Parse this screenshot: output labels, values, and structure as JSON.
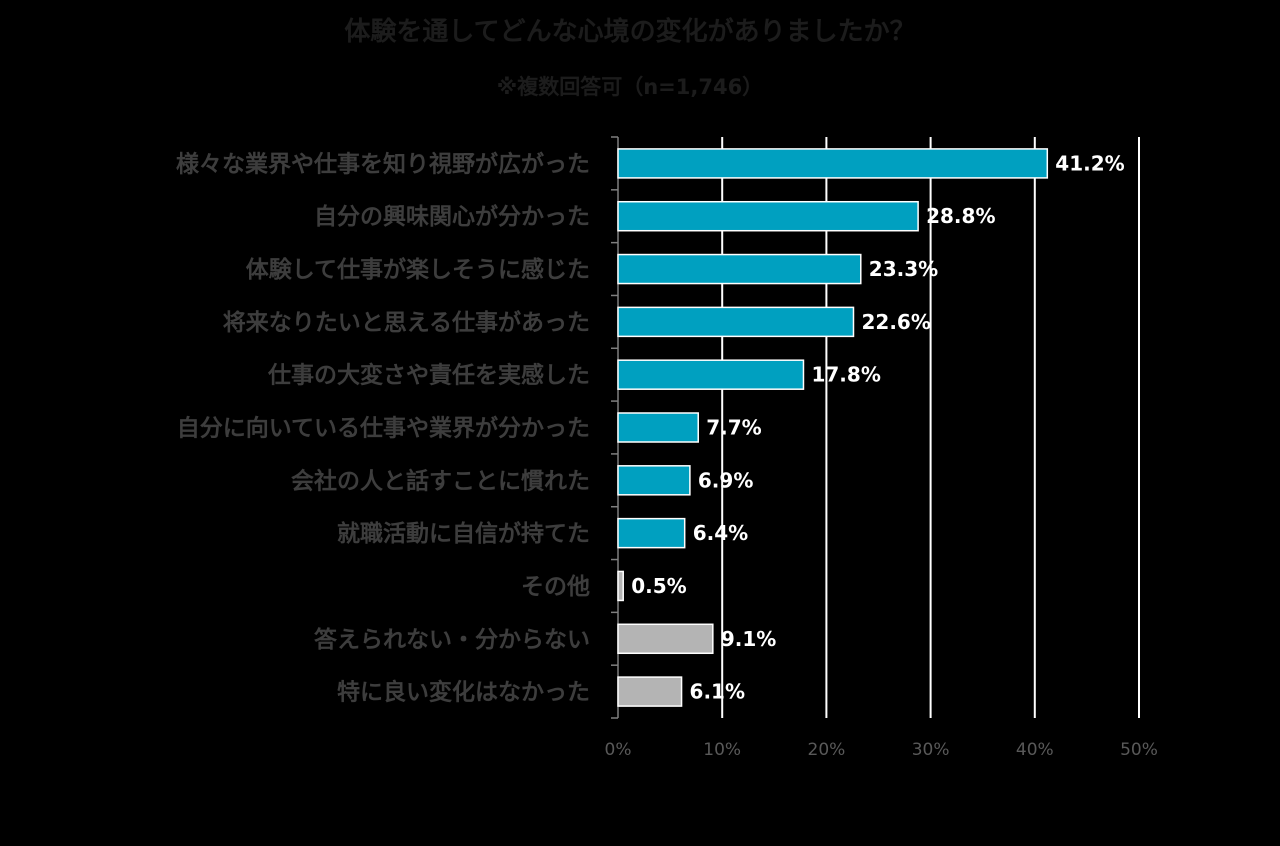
{
  "chart_data": {
    "type": "bar",
    "orientation": "horizontal",
    "title": "体験を通してどんな心境の変化がありましたか？",
    "subtitle": "※複数回答可（n=1,746）",
    "categories": [
      "様々な業界や仕事を知り視野が広がった",
      "自分の興味関心が分かった",
      "体験して仕事が楽しそうに感じた",
      "将来なりたいと思える仕事があった",
      "仕事の大変さや責任を実感した",
      "自分に向いている仕事や業界が分かった",
      "会社の人と話すことに慣れた",
      "就職活動に自信が持てた",
      "その他",
      "答えられない・分からない",
      "特に良い変化はなかった"
    ],
    "values": [
      41.2,
      28.8,
      23.3,
      22.6,
      17.8,
      7.7,
      6.9,
      6.4,
      0.5,
      9.1,
      6.1
    ],
    "value_labels": [
      "41.2%",
      "28.8%",
      "23.3%",
      "22.6%",
      "17.8%",
      "7.7%",
      "6.9%",
      "6.4%",
      "0.5%",
      "9.1%",
      "6.1%"
    ],
    "bar_colors": [
      "#00a0c0",
      "#00a0c0",
      "#00a0c0",
      "#00a0c0",
      "#00a0c0",
      "#00a0c0",
      "#00a0c0",
      "#00a0c0",
      "#b4b4b4",
      "#b4b4b4",
      "#b4b4b4"
    ],
    "xlim": [
      0,
      50
    ],
    "xticks": [
      0,
      10,
      20,
      30,
      40,
      50
    ],
    "xtick_labels": [
      "0%",
      "10%",
      "20%",
      "30%",
      "40%",
      "50%"
    ],
    "xlabel": "",
    "ylabel": "",
    "grid": true,
    "legend": "none"
  }
}
